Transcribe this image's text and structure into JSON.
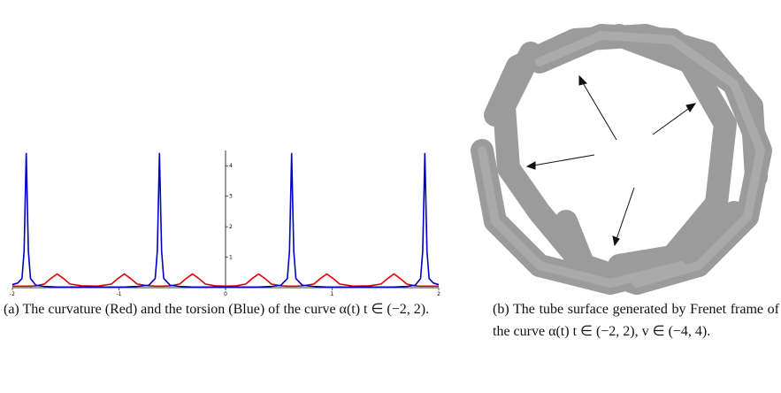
{
  "chart_data": {
    "type": "line",
    "x": [
      -2,
      -1.95,
      -1.91,
      -1.89,
      -1.87,
      -1.85,
      -1.83,
      -1.78,
      -1.7,
      -1.64,
      -1.58,
      -1.52,
      -1.46,
      -1.35,
      -1.2,
      -1.07,
      -1.01,
      -0.95,
      -0.89,
      -0.83,
      -0.72,
      -0.66,
      -0.64,
      -0.62,
      -0.6,
      -0.58,
      -0.52,
      -0.43,
      -0.37,
      -0.31,
      -0.25,
      -0.19,
      -0.1,
      0,
      0.1,
      0.19,
      0.25,
      0.31,
      0.37,
      0.43,
      0.52,
      0.58,
      0.6,
      0.62,
      0.64,
      0.66,
      0.72,
      0.83,
      0.89,
      0.95,
      1.01,
      1.07,
      1.2,
      1.35,
      1.46,
      1.52,
      1.58,
      1.64,
      1.7,
      1.78,
      1.83,
      1.85,
      1.87,
      1.89,
      1.91,
      1.95,
      2
    ],
    "series": [
      {
        "color": "#e00000",
        "values": [
          0.05,
          0.05,
          0.05,
          0.05,
          0.05,
          0.05,
          0.05,
          0.06,
          0.12,
          0.3,
          0.45,
          0.3,
          0.12,
          0.06,
          0.05,
          0.12,
          0.3,
          0.45,
          0.3,
          0.12,
          0.06,
          0.05,
          0.05,
          0.05,
          0.05,
          0.05,
          0.06,
          0.12,
          0.3,
          0.45,
          0.3,
          0.12,
          0.06,
          0.05,
          0.06,
          0.12,
          0.3,
          0.45,
          0.3,
          0.12,
          0.06,
          0.05,
          0.05,
          0.05,
          0.05,
          0.05,
          0.06,
          0.12,
          0.3,
          0.45,
          0.3,
          0.12,
          0.05,
          0.06,
          0.12,
          0.3,
          0.45,
          0.3,
          0.12,
          0.06,
          0.05,
          0.05,
          0.05,
          0.05,
          0.05,
          0.05,
          0.05
        ]
      },
      {
        "color": "#0000c8",
        "values": [
          0.1,
          0.15,
          0.3,
          1.2,
          4.4,
          1.2,
          0.3,
          0.08,
          0.04,
          0.03,
          0.02,
          0.02,
          0.02,
          0.02,
          0.02,
          0.02,
          0.02,
          0.02,
          0.03,
          0.04,
          0.08,
          0.3,
          1.2,
          4.4,
          1.2,
          0.3,
          0.08,
          0.04,
          0.03,
          0.02,
          0.02,
          0.02,
          0.02,
          0.02,
          0.02,
          0.02,
          0.02,
          0.02,
          0.03,
          0.04,
          0.08,
          0.3,
          1.2,
          4.4,
          1.2,
          0.3,
          0.08,
          0.04,
          0.03,
          0.02,
          0.02,
          0.02,
          0.02,
          0.02,
          0.02,
          0.02,
          0.02,
          0.03,
          0.04,
          0.08,
          0.3,
          1.2,
          4.4,
          1.2,
          0.3,
          0.15,
          0.1
        ]
      }
    ],
    "xlim": [
      -2,
      2
    ],
    "xticks": [
      -2,
      -1,
      0,
      1,
      2
    ],
    "ylim": [
      0,
      4.5
    ],
    "yticks": [
      1,
      2,
      3,
      4
    ]
  },
  "captions": {
    "a": "(a) The curvature (Red) and the torsion (Blue) of the curve α(t) t ∈ (−2, 2).",
    "b": "(b) The tube surface generated by Frenet frame of the curve α(t) t ∈ (−2, 2), v ∈ (−4, 4)."
  }
}
